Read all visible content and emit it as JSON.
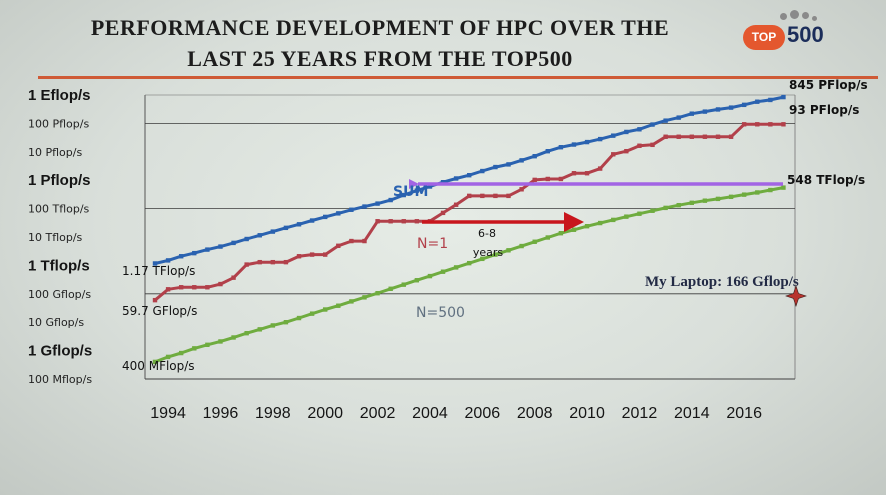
{
  "header": {
    "title_line1": "PERFORMANCE DEVELOPMENT OF HPC OVER THE",
    "title_line2": "LAST 25 YEARS FROM THE TOP500",
    "logo_badge": "TOP",
    "logo_number": "500"
  },
  "colors": {
    "sum": "#2a62b0",
    "n1": "#b2404a",
    "n500": "#6fac3f",
    "arrow_sum": "#a264e4",
    "arrow_red": "#c8161c",
    "title_rule": "#cf5a36",
    "logo": "#e4572e"
  },
  "chart_data": {
    "type": "line",
    "y_scale": "log10",
    "y_unit": "flop/s",
    "ylim": [
      100000000.0,
      1e+18
    ],
    "xlim": [
      1993.5,
      2017.75
    ],
    "grid": true,
    "y_tick_labels": [
      {
        "value": 1e+18,
        "label": "1 Eflop/s",
        "major": true
      },
      {
        "value": 1e+17,
        "label": "100 Pflop/s",
        "major": false
      },
      {
        "value": 1e+16,
        "label": "10 Pflop/s",
        "major": false
      },
      {
        "value": 1000000000000000.0,
        "label": "1 Pflop/s",
        "major": true
      },
      {
        "value": 100000000000000.0,
        "label": "100 Tflop/s",
        "major": false
      },
      {
        "value": 10000000000000.0,
        "label": "10 Tflop/s",
        "major": false
      },
      {
        "value": 1000000000000.0,
        "label": "1 Tflop/s",
        "major": true
      },
      {
        "value": 100000000000.0,
        "label": "100 Gflop/s",
        "major": false
      },
      {
        "value": 10000000000.0,
        "label": "10 Gflop/s",
        "major": false
      },
      {
        "value": 1000000000.0,
        "label": "1 Gflop/s",
        "major": true
      },
      {
        "value": 100000000.0,
        "label": "100 Mflop/s",
        "major": false
      }
    ],
    "x_tick_labels": [
      "1994",
      "1996",
      "1998",
      "2000",
      "2002",
      "2004",
      "2006",
      "2008",
      "2010",
      "2012",
      "2014",
      "2016"
    ],
    "x_ticks": [
      1994,
      1996,
      1998,
      2000,
      2002,
      2004,
      2006,
      2008,
      2010,
      2012,
      2014,
      2016
    ],
    "series": [
      {
        "name": "SUM",
        "color_key": "sum",
        "label_color": "#2a62b0",
        "points": [
          [
            1993.5,
            1170000000000.0
          ],
          [
            1994.0,
            1500000000000.0
          ],
          [
            1994.5,
            2100000000000.0
          ],
          [
            1995.0,
            2700000000000.0
          ],
          [
            1995.5,
            3600000000000.0
          ],
          [
            1996.0,
            4600000000000.0
          ],
          [
            1996.5,
            6200000000000.0
          ],
          [
            1997.0,
            8500000000000.0
          ],
          [
            1997.5,
            11500000000000.0
          ],
          [
            1998.0,
            15500000000000.0
          ],
          [
            1998.5,
            21000000000000.0
          ],
          [
            1999.0,
            28000000000000.0
          ],
          [
            1999.5,
            38000000000000.0
          ],
          [
            2000.0,
            51000000000000.0
          ],
          [
            2000.5,
            68000000000000.0
          ],
          [
            2001.0,
            91000000000000.0
          ],
          [
            2001.5,
            118000000000000.0
          ],
          [
            2002.0,
            150000000000000.0
          ],
          [
            2002.5,
            200000000000000.0
          ],
          [
            2003.0,
            300000000000000.0
          ],
          [
            2003.5,
            430000000000000.0
          ],
          [
            2004.0,
            600000000000000.0
          ],
          [
            2004.5,
            850000000000000.0
          ],
          [
            2005.0,
            1150000000000000.0
          ],
          [
            2005.5,
            1500000000000000.0
          ],
          [
            2006.0,
            2100000000000000.0
          ],
          [
            2006.5,
            2900000000000000.0
          ],
          [
            2007.0,
            3600000000000000.0
          ],
          [
            2007.5,
            5000000000000000.0
          ],
          [
            2008.0,
            7000000000000000.0
          ],
          [
            2008.5,
            1.05e+16
          ],
          [
            2009.0,
            1.45e+16
          ],
          [
            2009.5,
            1.8e+16
          ],
          [
            2010.0,
            2.2e+16
          ],
          [
            2010.5,
            2.8e+16
          ],
          [
            2011.0,
            3.7e+16
          ],
          [
            2011.5,
            5e+16
          ],
          [
            2012.0,
            6.2e+16
          ],
          [
            2012.5,
            9.1e+16
          ],
          [
            2013.0,
            1.25e+17
          ],
          [
            2013.5,
            1.6e+17
          ],
          [
            2014.0,
            2.2e+17
          ],
          [
            2014.5,
            2.6e+17
          ],
          [
            2015.0,
            3.1e+17
          ],
          [
            2015.5,
            3.6e+17
          ],
          [
            2016.0,
            4.5e+17
          ],
          [
            2016.5,
            5.8e+17
          ],
          [
            2017.0,
            6.7e+17
          ],
          [
            2017.5,
            8.45e+17
          ]
        ]
      },
      {
        "name": "N=1",
        "color_key": "n1",
        "label_color": "#b2404a",
        "points": [
          [
            1993.5,
            59700000000.0
          ],
          [
            1994.0,
            144000000000.0
          ],
          [
            1994.5,
            170000000000.0
          ],
          [
            1995.0,
            170000000000.0
          ],
          [
            1995.5,
            170000000000.0
          ],
          [
            1996.0,
            220000000000.0
          ],
          [
            1996.5,
            370000000000.0
          ],
          [
            1997.0,
            1070000000000.0
          ],
          [
            1997.5,
            1300000000000.0
          ],
          [
            1998.0,
            1300000000000.0
          ],
          [
            1998.5,
            1300000000000.0
          ],
          [
            1999.0,
            2100000000000.0
          ],
          [
            1999.5,
            2400000000000.0
          ],
          [
            2000.0,
            2400000000000.0
          ],
          [
            2000.5,
            4900000000000.0
          ],
          [
            2001.0,
            7200000000000.0
          ],
          [
            2001.5,
            7200000000000.0
          ],
          [
            2002.0,
            35860000000000.0
          ],
          [
            2002.5,
            35860000000000.0
          ],
          [
            2003.0,
            35860000000000.0
          ],
          [
            2003.5,
            35860000000000.0
          ],
          [
            2004.0,
            35860000000000.0
          ],
          [
            2004.5,
            70700000000000.0
          ],
          [
            2005.0,
            136700000000000.0
          ],
          [
            2005.5,
            280600000000000.0
          ],
          [
            2006.0,
            280600000000000.0
          ],
          [
            2006.5,
            280600000000000.0
          ],
          [
            2007.0,
            280600000000000.0
          ],
          [
            2007.5,
            478200000000000.0
          ],
          [
            2008.0,
            1026000000000000.0
          ],
          [
            2008.5,
            1105000000000000.0
          ],
          [
            2009.0,
            1105000000000000.0
          ],
          [
            2009.5,
            1759000000000000.0
          ],
          [
            2010.0,
            1759000000000000.0
          ],
          [
            2010.5,
            2566000000000000.0
          ],
          [
            2011.0,
            8162000000000000.0
          ],
          [
            2011.5,
            1.051e+16
          ],
          [
            2012.0,
            1.632e+16
          ],
          [
            2012.5,
            1.759e+16
          ],
          [
            2013.0,
            3.386e+16
          ],
          [
            2013.5,
            3.386e+16
          ],
          [
            2014.0,
            3.386e+16
          ],
          [
            2014.5,
            3.386e+16
          ],
          [
            2015.0,
            3.386e+16
          ],
          [
            2015.5,
            3.386e+16
          ],
          [
            2016.0,
            9.3e+16
          ],
          [
            2016.5,
            9.3e+16
          ],
          [
            2017.0,
            9.3e+16
          ],
          [
            2017.5,
            9.3e+16
          ]
        ]
      },
      {
        "name": "N=500",
        "color_key": "n500",
        "label_color": "#607080",
        "points": [
          [
            1993.5,
            400000000.0
          ],
          [
            1994.0,
            600000000.0
          ],
          [
            1994.5,
            820000000.0
          ],
          [
            1995.0,
            1200000000.0
          ],
          [
            1995.5,
            1600000000.0
          ],
          [
            1996.0,
            2100000000.0
          ],
          [
            1996.5,
            2900000000.0
          ],
          [
            1997.0,
            4100000000.0
          ],
          [
            1997.5,
            5600000000.0
          ],
          [
            1998.0,
            7700000000.0
          ],
          [
            1998.5,
            10000000000.0
          ],
          [
            1999.0,
            14000000000.0
          ],
          [
            1999.5,
            20000000000.0
          ],
          [
            2000.0,
            28000000000.0
          ],
          [
            2000.5,
            38000000000.0
          ],
          [
            2001.0,
            54000000000.0
          ],
          [
            2001.5,
            75000000000.0
          ],
          [
            2002.0,
            105000000000.0
          ],
          [
            2002.5,
            150000000000.0
          ],
          [
            2003.0,
            210000000000.0
          ],
          [
            2003.5,
            300000000000.0
          ],
          [
            2004.0,
            420000000000.0
          ],
          [
            2004.5,
            600000000000.0
          ],
          [
            2005.0,
            850000000000.0
          ],
          [
            2005.5,
            1200000000000.0
          ],
          [
            2006.0,
            1700000000000.0
          ],
          [
            2006.5,
            2400000000000.0
          ],
          [
            2007.0,
            3400000000000.0
          ],
          [
            2007.5,
            4800000000000.0
          ],
          [
            2008.0,
            6800000000000.0
          ],
          [
            2008.5,
            9600000000000.0
          ],
          [
            2009.0,
            13600000000000.0
          ],
          [
            2009.5,
            18000000000000.0
          ],
          [
            2010.0,
            24000000000000.0
          ],
          [
            2010.5,
            31000000000000.0
          ],
          [
            2011.0,
            40000000000000.0
          ],
          [
            2011.5,
            52000000000000.0
          ],
          [
            2012.0,
            66000000000000.0
          ],
          [
            2012.5,
            84000000000000.0
          ],
          [
            2013.0,
            106000000000000.0
          ],
          [
            2013.5,
            132000000000000.0
          ],
          [
            2014.0,
            160000000000000.0
          ],
          [
            2014.5,
            190000000000000.0
          ],
          [
            2015.0,
            220000000000000.0
          ],
          [
            2015.5,
            260000000000000.0
          ],
          [
            2016.0,
            310000000000000.0
          ],
          [
            2016.5,
            370000000000000.0
          ],
          [
            2017.0,
            450000000000000.0
          ],
          [
            2017.5,
            548000000000000.0
          ]
        ]
      }
    ],
    "annotations": {
      "sum_label": "SUM",
      "n1_label": "N=1",
      "n500_label": "N=500",
      "sum_end": "845 PFlop/s",
      "n1_end": "93 PFlop/s",
      "n500_end": "548 TFlop/s",
      "sum_start": "1.17 TFlop/s",
      "n1_start": "59.7 GFlop/s",
      "n500_start": "400 MFlop/s",
      "gap_years_line1": "6-8",
      "gap_years_line2": "years",
      "laptop_label": "My Laptop: 166 Gflop/s",
      "laptop_value": 166000000000.0
    }
  }
}
